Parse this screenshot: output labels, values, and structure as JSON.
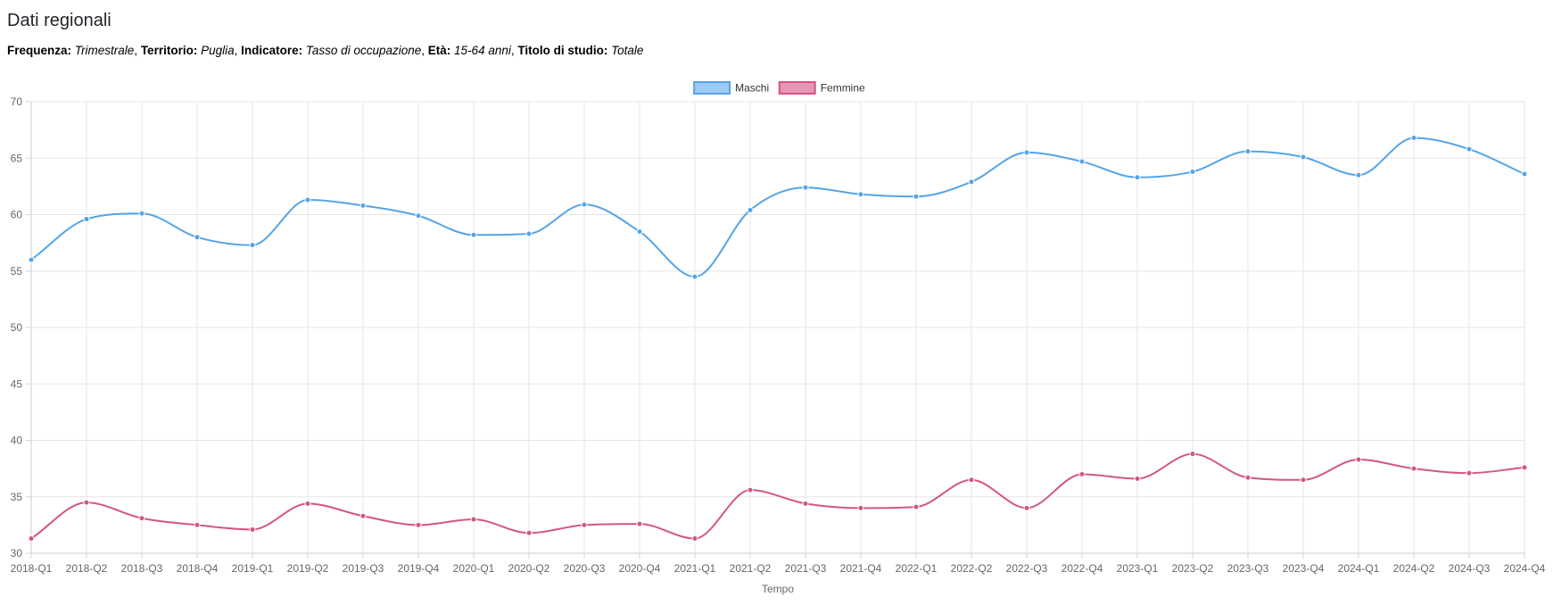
{
  "page": {
    "title": "Dati regionali"
  },
  "filters": [
    {
      "label": "Frequenza:",
      "value": "Trimestrale"
    },
    {
      "label": "Territorio:",
      "value": "Puglia"
    },
    {
      "label": "Indicatore:",
      "value": "Tasso di occupazione"
    },
    {
      "label": "Età:",
      "value": "15-64 anni"
    },
    {
      "label": "Titolo di studio:",
      "value": "Totale"
    }
  ],
  "chart_data": {
    "type": "line",
    "xlabel": "Tempo",
    "ylabel": "",
    "ylim": [
      30,
      70
    ],
    "yticks": [
      30,
      35,
      40,
      45,
      50,
      55,
      60,
      65,
      70
    ],
    "grid": true,
    "legend_position": "top-center",
    "categories": [
      "2018-Q1",
      "2018-Q2",
      "2018-Q3",
      "2018-Q4",
      "2019-Q1",
      "2019-Q2",
      "2019-Q3",
      "2019-Q4",
      "2020-Q1",
      "2020-Q2",
      "2020-Q3",
      "2020-Q4",
      "2021-Q1",
      "2021-Q2",
      "2021-Q3",
      "2021-Q4",
      "2022-Q1",
      "2022-Q2",
      "2022-Q3",
      "2022-Q4",
      "2023-Q1",
      "2023-Q2",
      "2023-Q3",
      "2023-Q4",
      "2024-Q1",
      "2024-Q2",
      "2024-Q3",
      "2024-Q4"
    ],
    "series": [
      {
        "name": "Maschi",
        "color": "#55a4e8",
        "fill": "#9ccbf5",
        "values": [
          56.0,
          59.6,
          60.1,
          58.0,
          57.3,
          61.3,
          60.8,
          59.9,
          58.2,
          58.3,
          60.9,
          58.5,
          54.5,
          60.4,
          62.4,
          61.8,
          61.6,
          62.9,
          65.5,
          64.7,
          63.3,
          63.8,
          65.6,
          65.1,
          63.5,
          66.8,
          65.8,
          63.6
        ]
      },
      {
        "name": "Femmine",
        "color": "#d35586",
        "fill": "#e697b7",
        "values": [
          31.3,
          34.5,
          33.1,
          32.5,
          32.1,
          34.4,
          33.3,
          32.5,
          33.0,
          31.8,
          32.5,
          32.6,
          31.3,
          35.6,
          34.4,
          34.0,
          34.1,
          36.5,
          34.0,
          37.0,
          36.6,
          38.8,
          36.7,
          36.5,
          38.3,
          37.5,
          37.1,
          37.6
        ]
      }
    ]
  }
}
